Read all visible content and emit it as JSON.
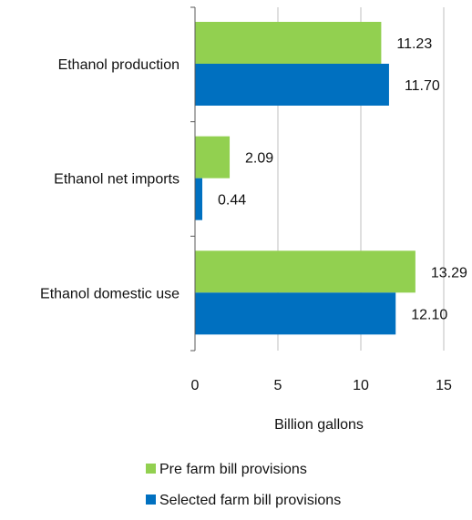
{
  "chart_data": {
    "type": "bar",
    "orientation": "horizontal",
    "categories": [
      "Ethanol production",
      "Ethanol net imports",
      "Ethanol domestic use"
    ],
    "series": [
      {
        "name": "Pre farm bill provisions",
        "color": "#92d050",
        "values": [
          11.23,
          2.09,
          13.29
        ],
        "labels": [
          "11.23",
          "2.09",
          "13.29"
        ]
      },
      {
        "name": "Selected farm bill provisions",
        "color": "#0070c0",
        "values": [
          11.7,
          0.44,
          12.1
        ],
        "labels": [
          "11.70",
          "0.44",
          "12.10"
        ]
      }
    ],
    "xlabel": "Billion gallons",
    "xlim": [
      0,
      15
    ],
    "xticks": [
      0,
      5,
      10,
      15
    ],
    "grid": true,
    "legend_position": "bottom"
  }
}
